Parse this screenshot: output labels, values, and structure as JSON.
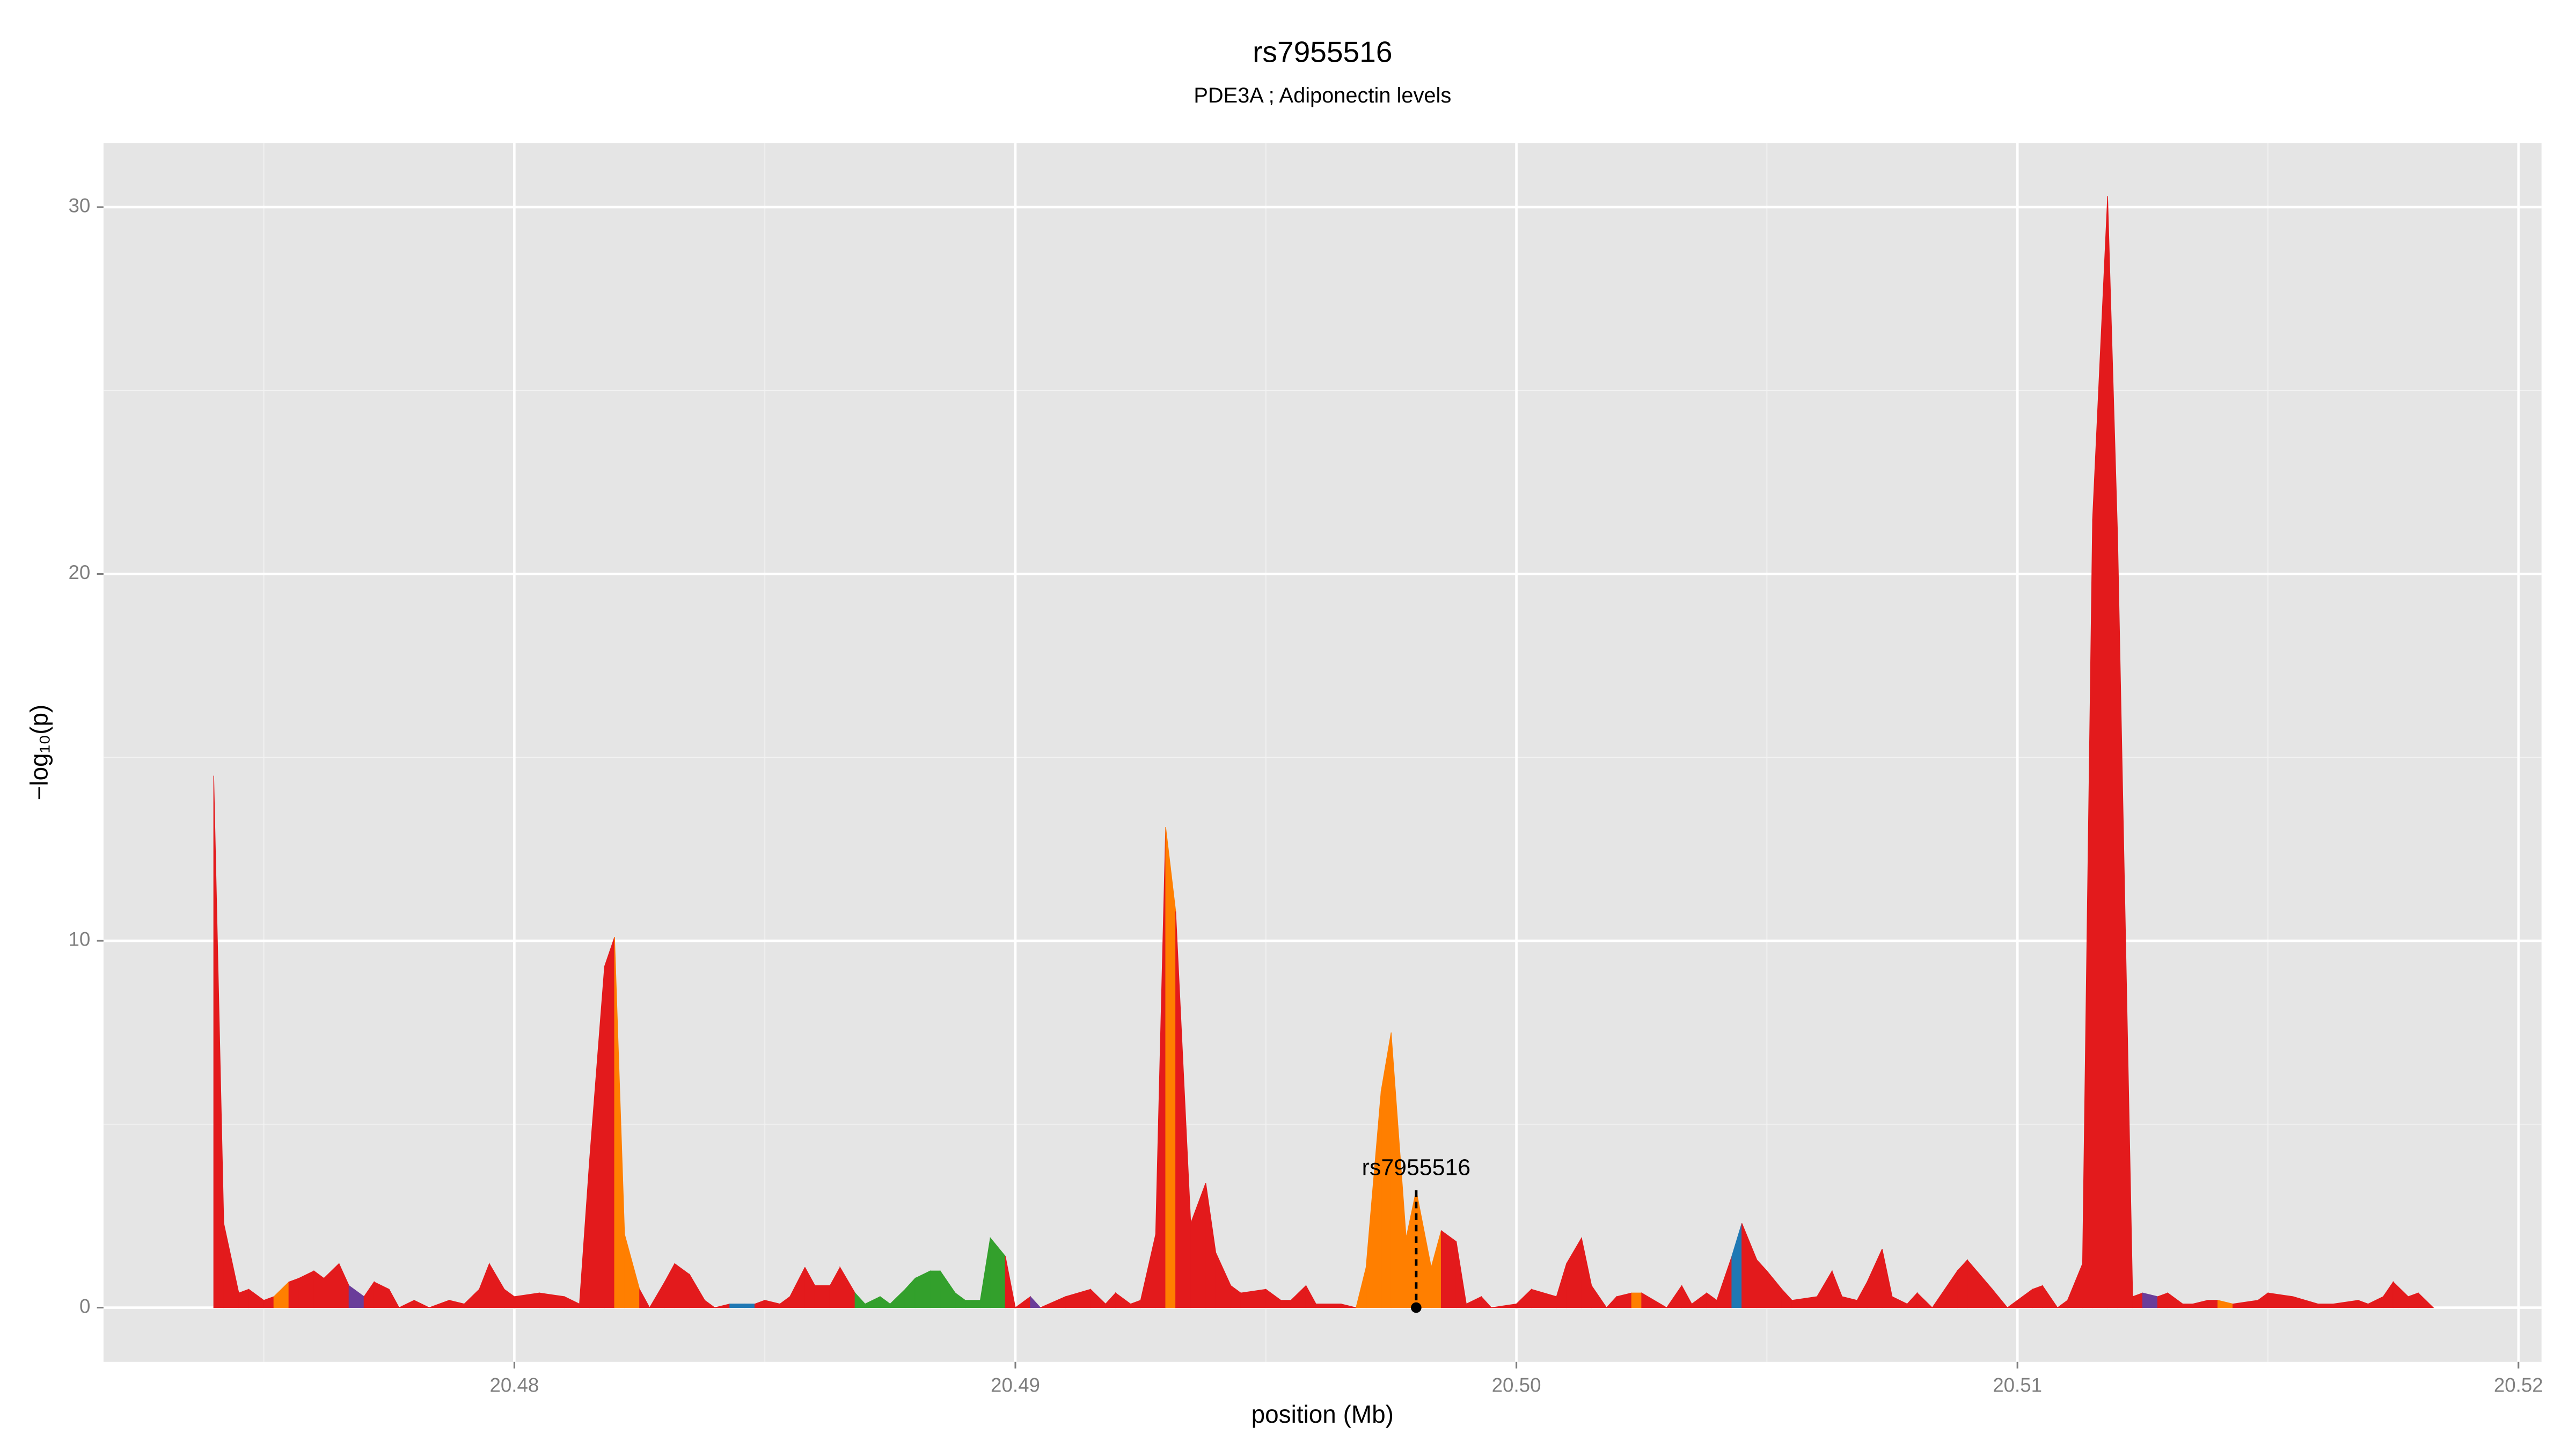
{
  "chart_data": {
    "type": "area",
    "title": "rs7955516",
    "subtitle": "PDE3A ; Adiponectin levels",
    "xlabel": "position (Mb)",
    "ylabel": "−log₁₀(p)",
    "xlim": [
      20.4718,
      20.52046
    ],
    "ylim": [
      -1.48,
      31.75
    ],
    "xticks": [
      20.48,
      20.49,
      {
        "value": 20.5,
        "label": "20.50"
      },
      20.51,
      20.52
    ],
    "xminorticks": [
      20.475,
      20.485,
      20.495,
      20.505,
      20.515
    ],
    "yticks": [
      0,
      10,
      20,
      30
    ],
    "yminorticks": [
      5,
      15,
      25
    ],
    "grid": true,
    "x": [
      20.474,
      20.4742,
      20.4745,
      20.4747,
      20.475,
      20.4752,
      20.4755,
      20.4757,
      20.476,
      20.4762,
      20.4765,
      20.4767,
      20.477,
      20.4772,
      20.4775,
      20.4777,
      20.478,
      20.4783,
      20.4787,
      20.479,
      20.4793,
      20.4795,
      20.4798,
      20.48,
      20.4805,
      20.481,
      20.4813,
      20.4815,
      20.4818,
      20.482,
      20.4822,
      20.4825,
      20.4827,
      20.483,
      20.4832,
      20.4835,
      20.4838,
      20.484,
      20.4843,
      20.4846,
      20.4848,
      20.485,
      20.4853,
      20.4855,
      20.4858,
      20.486,
      20.4863,
      20.4865,
      20.4868,
      20.487,
      20.4873,
      20.4875,
      20.4878,
      20.488,
      20.4883,
      20.4885,
      20.4888,
      20.489,
      20.4893,
      20.4895,
      20.4898,
      20.49,
      20.4903,
      20.4905,
      20.491,
      20.4915,
      20.4918,
      20.492,
      20.4923,
      20.4925,
      20.4928,
      20.493,
      20.4932,
      20.4935,
      20.4938,
      20.494,
      20.4943,
      20.4945,
      20.495,
      20.4953,
      20.4955,
      20.4958,
      20.496,
      20.4965,
      20.4968,
      20.497,
      20.4973,
      20.4975,
      20.4978,
      20.498,
      20.4983,
      20.4985,
      20.4988,
      20.499,
      20.4993,
      20.4995,
      20.5,
      20.5003,
      20.5008,
      20.501,
      20.5013,
      20.5015,
      20.5018,
      20.502,
      20.5023,
      20.5025,
      20.503,
      20.5033,
      20.5035,
      20.5038,
      20.504,
      20.5043,
      20.5045,
      20.5048,
      20.505,
      20.5053,
      20.5055,
      20.506,
      20.5063,
      20.5065,
      20.5068,
      20.507,
      20.5073,
      20.5075,
      20.5078,
      20.508,
      20.5083,
      20.5088,
      20.509,
      20.5095,
      20.5098,
      20.5103,
      20.5105,
      20.5108,
      20.511,
      20.5113,
      20.5115,
      20.5118,
      20.512,
      20.5123,
      20.5125,
      20.5128,
      20.513,
      20.5133,
      20.5135,
      20.5138,
      20.514,
      20.5143,
      20.5148,
      20.515,
      20.5155,
      20.516,
      20.5163,
      20.5168,
      20.517,
      20.5173,
      20.5175,
      20.5178,
      20.518,
      20.5183
    ],
    "values": [
      14.5,
      2.3,
      0.4,
      0.5,
      0.2,
      0.3,
      0.7,
      0.8,
      1.0,
      0.8,
      1.2,
      0.6,
      0.3,
      0.7,
      0.5,
      0.0,
      0.2,
      0.0,
      0.2,
      0.1,
      0.5,
      1.2,
      0.5,
      0.3,
      0.4,
      0.3,
      0.1,
      4.0,
      9.3,
      10.1,
      2.0,
      0.5,
      0.0,
      0.7,
      1.2,
      0.9,
      0.2,
      0.0,
      0.1,
      0.1,
      0.1,
      0.2,
      0.1,
      0.3,
      1.1,
      0.6,
      0.6,
      1.1,
      0.4,
      0.1,
      0.3,
      0.1,
      0.5,
      0.8,
      1.0,
      1.0,
      0.4,
      0.2,
      0.2,
      1.9,
      1.4,
      0.0,
      0.3,
      0.0,
      0.3,
      0.5,
      0.1,
      0.4,
      0.1,
      0.2,
      2.0,
      13.1,
      10.8,
      2.3,
      3.4,
      1.5,
      0.6,
      0.4,
      0.5,
      0.2,
      0.2,
      0.6,
      0.1,
      0.1,
      0.0,
      1.1,
      5.9,
      7.5,
      1.9,
      3.2,
      1.1,
      2.1,
      1.8,
      0.1,
      0.3,
      0.0,
      0.1,
      0.5,
      0.3,
      1.2,
      1.9,
      0.6,
      0.0,
      0.3,
      0.4,
      0.4,
      0.0,
      0.6,
      0.1,
      0.4,
      0.2,
      1.4,
      2.3,
      1.3,
      1.0,
      0.5,
      0.2,
      0.3,
      1.0,
      0.3,
      0.2,
      0.7,
      1.6,
      0.3,
      0.1,
      0.4,
      0.0,
      1.0,
      1.3,
      0.5,
      0.0,
      0.5,
      0.6,
      0.0,
      0.2,
      1.2,
      21.5,
      30.3,
      21.0,
      0.3,
      0.4,
      0.3,
      0.4,
      0.1,
      0.1,
      0.2,
      0.2,
      0.1,
      0.2,
      0.4,
      0.3,
      0.1,
      0.1,
      0.2,
      0.1,
      0.3,
      0.7,
      0.3,
      0.4,
      0.0
    ],
    "colors": [
      "#e31a1c",
      "#e31a1c",
      "#e31a1c",
      "#e31a1c",
      "#e31a1c",
      "#ff7f00",
      "#e31a1c",
      "#e31a1c",
      "#e31a1c",
      "#e31a1c",
      "#e31a1c",
      "#6a3d9a",
      "#e31a1c",
      "#e31a1c",
      "#e31a1c",
      "#e31a1c",
      "#e31a1c",
      "#e31a1c",
      "#e31a1c",
      "#e31a1c",
      "#e31a1c",
      "#e31a1c",
      "#e31a1c",
      "#e31a1c",
      "#e31a1c",
      "#e31a1c",
      "#e31a1c",
      "#e31a1c",
      "#e31a1c",
      "#ff7f00",
      "#ff7f00",
      "#e31a1c",
      "#e31a1c",
      "#e31a1c",
      "#e31a1c",
      "#e31a1c",
      "#e31a1c",
      "#e31a1c",
      "#1f78b4",
      "#1f78b4",
      "#e31a1c",
      "#e31a1c",
      "#e31a1c",
      "#e31a1c",
      "#e31a1c",
      "#e31a1c",
      "#e31a1c",
      "#e31a1c",
      "#33a02c",
      "#33a02c",
      "#33a02c",
      "#33a02c",
      "#33a02c",
      "#33a02c",
      "#33a02c",
      "#33a02c",
      "#33a02c",
      "#33a02c",
      "#33a02c",
      "#33a02c",
      "#e31a1c",
      "#e31a1c",
      "#6a3d9a",
      "#e31a1c",
      "#e31a1c",
      "#e31a1c",
      "#e31a1c",
      "#e31a1c",
      "#e31a1c",
      "#e31a1c",
      "#e31a1c",
      "#ff7f00",
      "#e31a1c",
      "#e31a1c",
      "#e31a1c",
      "#e31a1c",
      "#e31a1c",
      "#e31a1c",
      "#e31a1c",
      "#e31a1c",
      "#e31a1c",
      "#e31a1c",
      "#e31a1c",
      "#e31a1c",
      "#ff7f00",
      "#ff7f00",
      "#ff7f00",
      "#ff7f00",
      "#ff7f00",
      "#ff7f00",
      "#ff7f00",
      "#e31a1c",
      "#e31a1c",
      "#e31a1c",
      "#e31a1c",
      "#e31a1c",
      "#e31a1c",
      "#e31a1c",
      "#e31a1c",
      "#e31a1c",
      "#e31a1c",
      "#e31a1c",
      "#e31a1c",
      "#e31a1c",
      "#ff7f00",
      "#e31a1c",
      "#e31a1c",
      "#e31a1c",
      "#e31a1c",
      "#e31a1c",
      "#e31a1c",
      "#1f78b4",
      "#e31a1c",
      "#e31a1c",
      "#e31a1c",
      "#e31a1c",
      "#e31a1c",
      "#e31a1c",
      "#e31a1c",
      "#e31a1c",
      "#e31a1c",
      "#e31a1c",
      "#e31a1c",
      "#e31a1c",
      "#e31a1c",
      "#e31a1c",
      "#e31a1c",
      "#e31a1c",
      "#e31a1c",
      "#e31a1c",
      "#e31a1c",
      "#e31a1c",
      "#e31a1c",
      "#e31a1c",
      "#e31a1c",
      "#e31a1c",
      "#e31a1c",
      "#e31a1c",
      "#e31a1c",
      "#e31a1c",
      "#6a3d9a",
      "#e31a1c",
      "#e31a1c",
      "#e31a1c",
      "#e31a1c",
      "#e31a1c",
      "#ff7f00",
      "#e31a1c",
      "#e31a1c",
      "#e31a1c",
      "#e31a1c",
      "#e31a1c",
      "#e31a1c",
      "#e31a1c",
      "#e31a1c",
      "#e31a1c",
      "#e31a1c",
      "#e31a1c",
      "#e31a1c",
      "#e31a1c"
    ],
    "annotation": {
      "label": "rs7955516",
      "x": 20.498,
      "y": 3.2
    }
  }
}
